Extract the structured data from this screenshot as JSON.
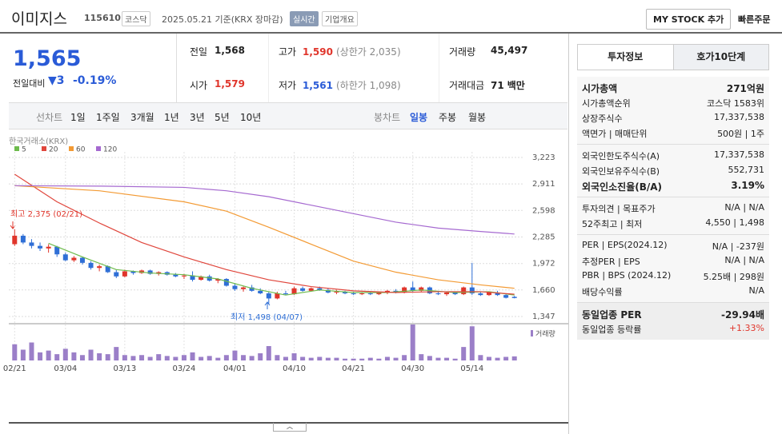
{
  "header": {
    "name": "이미지스",
    "code": "115610",
    "market": "코스닥",
    "date": "2025.05.21 기준(KRX 장마감)",
    "realtime": "실시간",
    "overview": "기업개요",
    "mystock": "MY STOCK 추가",
    "quick_order": "빠른주문"
  },
  "quote": {
    "price": "1,565",
    "change_label": "전일대비",
    "change": "3",
    "change_pct": "-0.19%"
  },
  "stats": [
    {
      "label": "전일",
      "value": "1,568"
    },
    {
      "label": "고가",
      "value": "1,590",
      "note": "(상한가 2,035)"
    },
    {
      "label": "거래량",
      "value": "45,497"
    },
    {
      "label": "시가",
      "value": "1,579"
    },
    {
      "label": "저가",
      "value": "1,561",
      "note": "(하한가 1,098)"
    },
    {
      "label": "거래대금",
      "value": "71",
      "note": "백만"
    }
  ],
  "period_tabs": {
    "label": "선차트",
    "items": [
      "1일",
      "1주일",
      "3개월",
      "1년",
      "3년",
      "5년",
      "10년"
    ]
  },
  "candle_tabs": {
    "label": "봉차트",
    "items": [
      "일봉",
      "주봉",
      "월봉"
    ]
  },
  "chart_data": {
    "type": "candlestick",
    "source": "한국거래소(KRX)",
    "volume_label": "거래량",
    "annotations": [
      "최고 2,375 (02/21)",
      "최저 1,498 (04/07)"
    ],
    "up_color": "#e0352b",
    "down_color": "#2f6fd6",
    "volume_color": "#9b7fc8",
    "grid": true,
    "ylim": [
      1347,
      3223
    ],
    "yticks": [
      {
        "value": 1347,
        "label": "1,347"
      },
      {
        "value": 1660,
        "label": "1,660"
      },
      {
        "value": 1972,
        "label": "1,972"
      },
      {
        "value": 2285,
        "label": "2,285"
      },
      {
        "value": 2598,
        "label": "2,598"
      },
      {
        "value": 2911,
        "label": "2,911"
      },
      {
        "value": 3223,
        "label": "3,223"
      }
    ],
    "categories": [
      "02/21",
      null,
      null,
      null,
      null,
      null,
      "03/04",
      null,
      null,
      null,
      null,
      null,
      null,
      "03/13",
      null,
      null,
      null,
      null,
      null,
      null,
      "03/24",
      null,
      null,
      null,
      null,
      null,
      "04/01",
      null,
      null,
      null,
      null,
      null,
      null,
      "04/10",
      null,
      null,
      null,
      null,
      null,
      null,
      "04/21",
      null,
      null,
      null,
      null,
      null,
      null,
      "04/30",
      null,
      null,
      null,
      null,
      null,
      null,
      "05/14",
      null,
      null,
      null,
      null,
      null
    ],
    "candles": [
      [
        2200,
        2375,
        2180,
        2300
      ],
      [
        2300,
        2320,
        2200,
        2220
      ],
      [
        2220,
        2260,
        2150,
        2180
      ],
      [
        2180,
        2220,
        2120,
        2150
      ],
      [
        2150,
        2200,
        2100,
        2170
      ],
      [
        2170,
        2180,
        2050,
        2080
      ],
      [
        2080,
        2100,
        2000,
        2010
      ],
      [
        2010,
        2060,
        1990,
        2040
      ],
      [
        2040,
        2050,
        1960,
        1980
      ],
      [
        1980,
        2000,
        1900,
        1920
      ],
      [
        1920,
        1960,
        1880,
        1940
      ],
      [
        1940,
        1950,
        1860,
        1870
      ],
      [
        1870,
        1900,
        1800,
        1820
      ],
      [
        1820,
        1900,
        1810,
        1880
      ],
      [
        1880,
        1890,
        1840,
        1860
      ],
      [
        1860,
        1900,
        1850,
        1890
      ],
      [
        1890,
        1900,
        1840,
        1850
      ],
      [
        1850,
        1880,
        1830,
        1870
      ],
      [
        1870,
        1880,
        1830,
        1840
      ],
      [
        1840,
        1860,
        1810,
        1820
      ],
      [
        1820,
        1850,
        1790,
        1830
      ],
      [
        1830,
        1880,
        1760,
        1780
      ],
      [
        1780,
        1830,
        1770,
        1820
      ],
      [
        1820,
        1840,
        1760,
        1770
      ],
      [
        1770,
        1800,
        1740,
        1790
      ],
      [
        1790,
        1800,
        1700,
        1710
      ],
      [
        1710,
        1740,
        1650,
        1670
      ],
      [
        1670,
        1700,
        1640,
        1690
      ],
      [
        1690,
        1720,
        1640,
        1650
      ],
      [
        1650,
        1680,
        1610,
        1620
      ],
      [
        1620,
        1640,
        1498,
        1560
      ],
      [
        1560,
        1640,
        1550,
        1620
      ],
      [
        1620,
        1650,
        1600,
        1610
      ],
      [
        1610,
        1700,
        1600,
        1680
      ],
      [
        1680,
        1700,
        1640,
        1650
      ],
      [
        1650,
        1690,
        1640,
        1680
      ],
      [
        1680,
        1700,
        1650,
        1660
      ],
      [
        1660,
        1680,
        1620,
        1630
      ],
      [
        1630,
        1660,
        1610,
        1640
      ],
      [
        1640,
        1650,
        1610,
        1620
      ],
      [
        1620,
        1640,
        1600,
        1610
      ],
      [
        1610,
        1630,
        1600,
        1620
      ],
      [
        1620,
        1640,
        1600,
        1610
      ],
      [
        1610,
        1640,
        1600,
        1630
      ],
      [
        1630,
        1660,
        1610,
        1650
      ],
      [
        1650,
        1670,
        1620,
        1630
      ],
      [
        1630,
        1700,
        1620,
        1690
      ],
      [
        1690,
        1760,
        1640,
        1650
      ],
      [
        1650,
        1700,
        1640,
        1690
      ],
      [
        1690,
        1700,
        1610,
        1620
      ],
      [
        1620,
        1640,
        1600,
        1610
      ],
      [
        1610,
        1640,
        1590,
        1630
      ],
      [
        1630,
        1640,
        1600,
        1610
      ],
      [
        1610,
        1700,
        1600,
        1690
      ],
      [
        1690,
        1980,
        1600,
        1620
      ],
      [
        1620,
        1640,
        1590,
        1600
      ],
      [
        1600,
        1640,
        1590,
        1630
      ],
      [
        1630,
        1650,
        1590,
        1600
      ],
      [
        1600,
        1610,
        1560,
        1568
      ],
      [
        1579,
        1590,
        1561,
        1565
      ]
    ],
    "volumes": [
      180000,
      120000,
      200000,
      90000,
      110000,
      70000,
      130000,
      90000,
      60000,
      120000,
      80000,
      70000,
      150000,
      60000,
      50000,
      60000,
      40000,
      70000,
      50000,
      40000,
      60000,
      90000,
      40000,
      50000,
      30000,
      60000,
      110000,
      60000,
      50000,
      80000,
      160000,
      60000,
      40000,
      80000,
      40000,
      30000,
      40000,
      30000,
      30000,
      20000,
      20000,
      20000,
      30000,
      20000,
      40000,
      30000,
      60000,
      400000,
      70000,
      50000,
      30000,
      30000,
      20000,
      150000,
      380000,
      60000,
      40000,
      30000,
      40000,
      45497
    ],
    "series": [
      {
        "name": "5",
        "color": "#6dbb4c",
        "x": [
          4,
          8,
          12,
          16,
          20,
          24,
          28,
          32,
          36,
          40,
          44,
          48,
          52,
          56,
          59
        ],
        "values": [
          2210,
          2050,
          1900,
          1860,
          1840,
          1790,
          1680,
          1600,
          1660,
          1630,
          1630,
          1660,
          1630,
          1640,
          1600
        ]
      },
      {
        "name": "20",
        "color": "#e0463c",
        "x": [
          0,
          5,
          10,
          15,
          20,
          25,
          30,
          35,
          40,
          45,
          50,
          55,
          59
        ],
        "values": [
          3025,
          2700,
          2450,
          2220,
          2050,
          1900,
          1780,
          1700,
          1650,
          1630,
          1640,
          1640,
          1610
        ]
      },
      {
        "name": "60",
        "color": "#f39a33",
        "x": [
          0,
          10,
          20,
          25,
          30,
          35,
          40,
          45,
          50,
          55,
          59
        ],
        "values": [
          2890,
          2830,
          2700,
          2590,
          2400,
          2200,
          2000,
          1870,
          1780,
          1720,
          1680
        ]
      },
      {
        "name": "120",
        "color": "#a569d0",
        "x": [
          0,
          10,
          20,
          25,
          30,
          35,
          40,
          45,
          50,
          55,
          59
        ],
        "values": [
          2890,
          2885,
          2870,
          2830,
          2760,
          2660,
          2560,
          2460,
          2390,
          2350,
          2320
        ]
      }
    ]
  },
  "side": {
    "tabs": [
      "투자정보",
      "호가10단계"
    ],
    "sections": [
      [
        {
          "label": "시가총액",
          "value": "271억원"
        },
        {
          "label": "시가총액순위",
          "value": "코스닥 1583위"
        },
        {
          "label": "상장주식수",
          "value": "17,337,538"
        },
        {
          "label": "액면가 | 매매단위",
          "value": "500원 | 1주"
        }
      ],
      [
        {
          "label": "외국인한도주식수(A)",
          "value": "17,337,538"
        },
        {
          "label": "외국인보유주식수(B)",
          "value": "552,731"
        },
        {
          "label": "외국인소진율(B/A)",
          "value": "3.19%"
        }
      ],
      [
        {
          "label": "투자의견 | 목표주가",
          "value": "N/A | N/A"
        },
        {
          "label": "52주최고 | 최저",
          "value": "4,550 | 1,498"
        }
      ],
      [
        {
          "label": "PER | EPS(2024.12)",
          "value": "N/A | -237원"
        },
        {
          "label": "추정PER | EPS",
          "value": "N/A | N/A"
        },
        {
          "label": "PBR | BPS (2024.12)",
          "value": "5.25배 | 298원"
        },
        {
          "label": "배당수익률",
          "value": "N/A"
        }
      ],
      [
        {
          "label": "동일업종 PER",
          "value": "-29.94배"
        },
        {
          "label": "동일업종 등락률",
          "value": "+1.33%"
        }
      ]
    ]
  }
}
